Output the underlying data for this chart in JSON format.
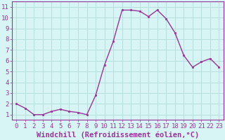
{
  "x": [
    0,
    1,
    2,
    3,
    4,
    5,
    6,
    7,
    8,
    9,
    10,
    11,
    12,
    13,
    14,
    15,
    16,
    17,
    18,
    19,
    20,
    21,
    22,
    23
  ],
  "y": [
    2.0,
    1.6,
    1.0,
    1.0,
    1.3,
    1.5,
    1.3,
    1.2,
    1.0,
    2.8,
    5.6,
    7.8,
    10.7,
    10.7,
    10.6,
    10.1,
    10.7,
    9.9,
    8.6,
    6.5,
    5.4,
    5.9,
    6.2,
    5.4
  ],
  "line_color": "#993399",
  "marker": "s",
  "marker_size": 2.0,
  "background_color": "#d8f5f5",
  "grid_color": "#b8dede",
  "xlabel": "Windchill (Refroidissement éolien,°C)",
  "xlabel_fontsize": 7.5,
  "ylabel_ticks": [
    1,
    2,
    3,
    4,
    5,
    6,
    7,
    8,
    9,
    10,
    11
  ],
  "xlim": [
    -0.5,
    23.5
  ],
  "ylim": [
    0.5,
    11.5
  ],
  "tick_fontsize": 6.5,
  "spine_color": "#993399",
  "line_width": 1.0
}
